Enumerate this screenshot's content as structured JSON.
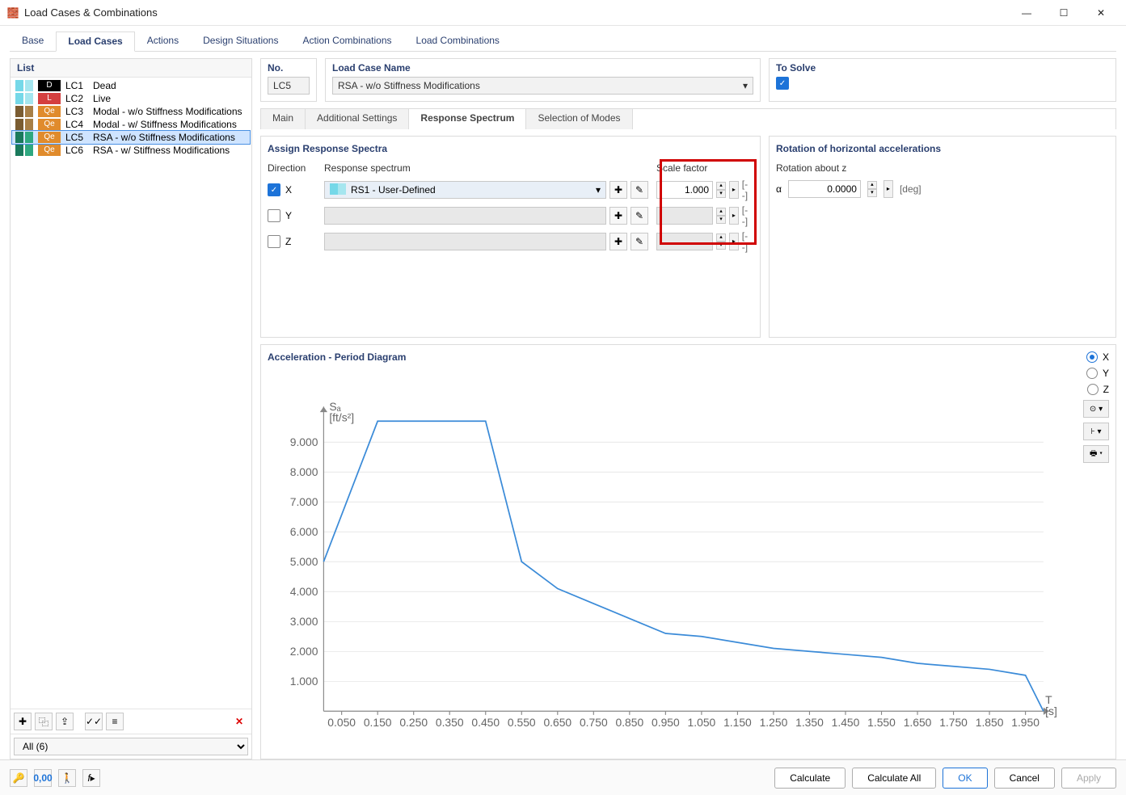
{
  "window_title": "Load Cases & Combinations",
  "tabs": [
    "Base",
    "Load Cases",
    "Actions",
    "Design Situations",
    "Action Combinations",
    "Load Combinations"
  ],
  "tabs_active": 1,
  "list_header": "List",
  "load_cases": [
    {
      "swatches": [
        "#75d8e8",
        "#a5e6ef"
      ],
      "badge_bg": "#000000",
      "badge": "D",
      "code": "LC1",
      "name": "Dead"
    },
    {
      "swatches": [
        "#75d8e8",
        "#a5e6ef"
      ],
      "badge_bg": "#d43f3f",
      "badge": "L",
      "code": "LC2",
      "name": "Live"
    },
    {
      "swatches": [
        "#7a5c31",
        "#a87f46"
      ],
      "badge_bg": "#e08b2c",
      "badge": "Qe",
      "code": "LC3",
      "name": "Modal - w/o Stiffness Modifications"
    },
    {
      "swatches": [
        "#7a5c31",
        "#a87f46"
      ],
      "badge_bg": "#e08b2c",
      "badge": "Qe",
      "code": "LC4",
      "name": "Modal - w/ Stiffness Modifications"
    },
    {
      "swatches": [
        "#1a7a5c",
        "#2fa880"
      ],
      "badge_bg": "#e08b2c",
      "badge": "Qe",
      "code": "LC5",
      "name": "RSA - w/o Stiffness Modifications"
    },
    {
      "swatches": [
        "#1a7a5c",
        "#2fa880"
      ],
      "badge_bg": "#e08b2c",
      "badge": "Qe",
      "code": "LC6",
      "name": "RSA - w/ Stiffness Modifications"
    }
  ],
  "selected_lc_index": 4,
  "filter_text": "All (6)",
  "no_label": "No.",
  "no_value": "LC5",
  "name_label": "Load Case Name",
  "name_value": "RSA - w/o Stiffness Modifications",
  "to_solve_label": "To Solve",
  "to_solve_checked": true,
  "sub_tabs": [
    "Main",
    "Additional Settings",
    "Response Spectrum",
    "Selection of Modes"
  ],
  "sub_tabs_active": 2,
  "spectra_title": "Assign Response Spectra",
  "rotation_title": "Rotation of horizontal accelerations",
  "col_direction": "Direction",
  "col_spectrum": "Response spectrum",
  "col_scale": "Scale factor",
  "rotation_label": "Rotation about z",
  "rotation_symbol": "α",
  "rotation_value": "0.0000",
  "rotation_unit": "[deg]",
  "directions": [
    {
      "label": "X",
      "checked": true,
      "spectrum": "RS1 - User-Defined",
      "sw": [
        "#75d8e8",
        "#a5e6ef"
      ],
      "scale": "1.000",
      "enabled": true
    },
    {
      "label": "Y",
      "checked": false,
      "spectrum": "",
      "sw": [],
      "scale": "",
      "enabled": false
    },
    {
      "label": "Z",
      "checked": false,
      "spectrum": "",
      "sw": [],
      "scale": "",
      "enabled": false
    }
  ],
  "scale_unit": "[--]",
  "chart_title": "Acceleration - Period Diagram",
  "chart_radios": [
    "X",
    "Y",
    "Z"
  ],
  "chart_radio_checked": 0,
  "chart": {
    "type": "line",
    "y_axis_label": "Sₐ\n[ft/s²]",
    "x_axis_label": "T\n[s]",
    "xlim": [
      0,
      2.0
    ],
    "ylim": [
      0,
      10
    ],
    "xticks": [
      0.05,
      0.15,
      0.25,
      0.35,
      0.45,
      0.55,
      0.65,
      0.75,
      0.85,
      0.95,
      1.05,
      1.15,
      1.25,
      1.35,
      1.45,
      1.55,
      1.65,
      1.75,
      1.85,
      1.95
    ],
    "yticks": [
      1.0,
      2.0,
      3.0,
      4.0,
      5.0,
      6.0,
      7.0,
      8.0,
      9.0
    ],
    "line_color": "#3b8bd8",
    "line_width": 1.5,
    "grid_color": "#d8d8d8",
    "axis_color": "#888888",
    "background_color": "#ffffff",
    "points": [
      [
        0.0,
        5.0
      ],
      [
        0.15,
        9.7
      ],
      [
        0.45,
        9.7
      ],
      [
        0.55,
        5.0
      ],
      [
        0.65,
        4.1
      ],
      [
        0.75,
        3.6
      ],
      [
        0.85,
        3.1
      ],
      [
        0.95,
        2.6
      ],
      [
        1.05,
        2.5
      ],
      [
        1.15,
        2.3
      ],
      [
        1.25,
        2.1
      ],
      [
        1.35,
        2.0
      ],
      [
        1.45,
        1.9
      ],
      [
        1.55,
        1.8
      ],
      [
        1.65,
        1.6
      ],
      [
        1.75,
        1.5
      ],
      [
        1.85,
        1.4
      ],
      [
        1.95,
        1.2
      ],
      [
        2.0,
        0.0
      ]
    ]
  },
  "bottom_buttons": {
    "calculate": "Calculate",
    "calc_all": "Calculate All",
    "ok": "OK",
    "cancel": "Cancel",
    "apply": "Apply"
  }
}
